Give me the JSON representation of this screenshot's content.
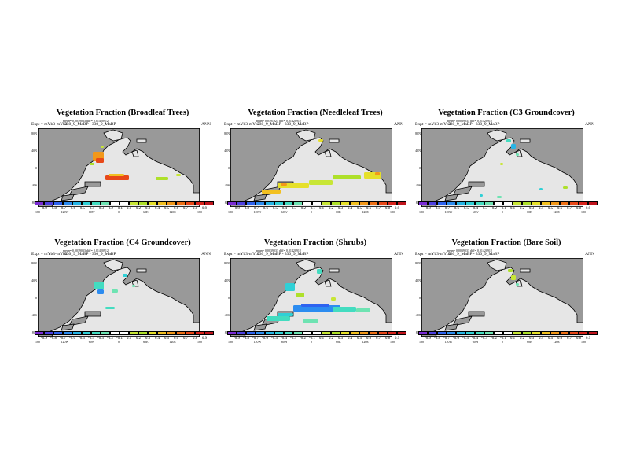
{
  "panels": [
    {
      "title": "Vegetation Fraction (Broadleaf Trees)",
      "sub1": "mean= 0.0039033  diff= 0.01420912",
      "expt": "Expt = mYb3-mYb2",
      "sub2": "330_9_MaBP - 330_9_MaBP",
      "ann": "ANN",
      "pattern": "broadleaf"
    },
    {
      "title": "Vegetation Fraction (Needleleaf Trees)",
      "sub1": "mean= 0.0391923  diff= 0.01420912",
      "expt": "Expt = mYb3-mYb2",
      "sub2": "330_9_MaBP - 330_9_MaBP",
      "ann": "ANN",
      "pattern": "needleleaf"
    },
    {
      "title": "Vegetation Fraction (C3 Groundcover)",
      "sub1": "mean= 0.0039033  diff= 0.01420912",
      "expt": "Expt = mYb3-mYb2",
      "sub2": "330_9_MaBP - 330_9_MaBP",
      "ann": "ANN",
      "pattern": "c3"
    },
    {
      "title": "Vegetation Fraction (C4 Groundcover)",
      "sub1": "mean= 0.0039033  diff= 0.01420912",
      "expt": "Expt = mYb3-mYb2",
      "sub2": "330_9_MaBP - 330_9_MaBP",
      "ann": "ANN",
      "pattern": "c4"
    },
    {
      "title": "Vegetation Fraction (Shrubs)",
      "sub1": "mean= 0.0039033  diff= 0.01420912",
      "expt": "Expt = mYb3-mYb2",
      "sub2": "330_9_MaBP - 330_9_MaBP",
      "ann": "ANN",
      "pattern": "shrubs"
    },
    {
      "title": "Vegetation Fraction (Bare Soil)",
      "sub1": "mean= 0.0039033  diff= 0.01420912",
      "expt": "Expt = mYb3-mYb2",
      "sub2": "330_9_MaBP - 330_9_MaBP",
      "ann": "ANN",
      "pattern": "baresoil"
    }
  ],
  "axes": {
    "lat_ticks": [
      "80N",
      "40N",
      "0",
      "40S",
      "80S"
    ],
    "lon_ticks": [
      "180",
      "120W",
      "60W",
      "0",
      "60E",
      "120E",
      "180"
    ]
  },
  "colorbar": {
    "labels": [
      "-0.9",
      "-0.8",
      "-0.7",
      "-0.6",
      "-0.5",
      "-0.4",
      "-0.3",
      "-0.2",
      "-0.1",
      "0.1",
      "0.2",
      "0.3",
      "0.4",
      "0.5",
      "0.6",
      "0.7",
      "0.8",
      "0.9"
    ],
    "colors": [
      "#7a2bd4",
      "#4d3fe0",
      "#2e63f0",
      "#2c8cf0",
      "#26b5e6",
      "#30d0d6",
      "#43dcc0",
      "#6ee3b2",
      "#ffffff",
      "#ffffff",
      "#c8e636",
      "#aee02a",
      "#e6e02a",
      "#f2c020",
      "#f2981a",
      "#ee7016",
      "#e84818",
      "#d8241c",
      "#c0141c"
    ]
  },
  "map_colors": {
    "ocean": "#999999",
    "land": "#e6e6e6",
    "coast": "#000000"
  }
}
